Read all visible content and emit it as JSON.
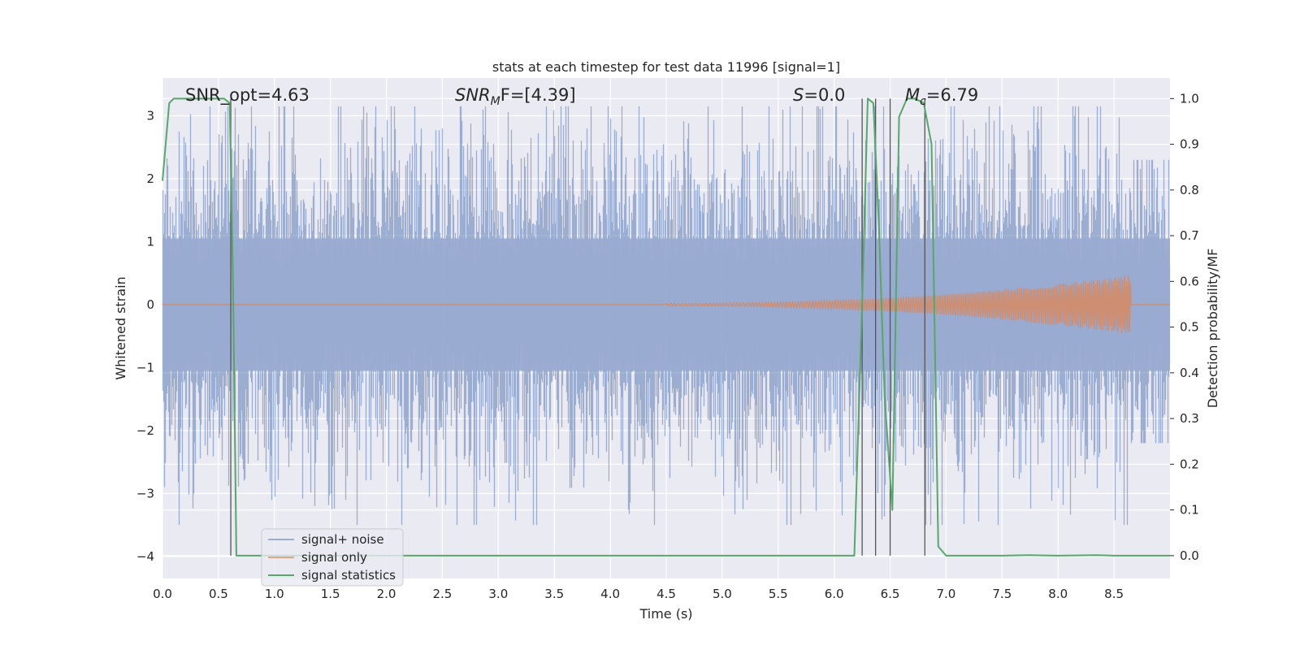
{
  "chart_data": {
    "type": "line",
    "title": "stats at each timestep for test data 11996 [signal=1]",
    "xlabel": "Time (s)",
    "ylabel": "Whitened strain",
    "y2label": "Detection probability/MF",
    "xlim": [
      0.0,
      9.0
    ],
    "ylim": [
      -4.35,
      3.6
    ],
    "y2lim": [
      -0.05,
      1.045
    ],
    "xticks": [
      "0.0",
      "0.5",
      "1.0",
      "1.5",
      "2.0",
      "2.5",
      "3.0",
      "3.5",
      "4.0",
      "4.5",
      "5.0",
      "5.5",
      "6.0",
      "6.5",
      "7.0",
      "7.5",
      "8.0",
      "8.5"
    ],
    "yticks": [
      "3",
      "2",
      "1",
      "0",
      "−1",
      "−2",
      "−3",
      "−4"
    ],
    "y2ticks": [
      "1.0",
      "0.9",
      "0.8",
      "0.7",
      "0.6",
      "0.5",
      "0.4",
      "0.3",
      "0.2",
      "0.1",
      "0.0"
    ],
    "grid": true,
    "legend_position": "lower-left",
    "annotations": [
      {
        "text": "SNR_opt=4.63",
        "x": 0.2
      },
      {
        "html_base": "SNR",
        "sub": "M",
        "rest": "F=[4.39]",
        "x": 2.6
      },
      {
        "html_base": "S",
        "rest": "=0.0",
        "x": 5.6
      },
      {
        "html_base": "M",
        "sub": "c",
        "rest": "=6.79",
        "x": 6.65
      }
    ],
    "noise": {
      "description_free": true,
      "amplitude_envelope": 1.1,
      "peak_extremes": {
        "max": 3.15,
        "min": -3.5
      }
    },
    "series": [
      {
        "name": "signal+ noise",
        "color": "#4c72b0",
        "style": "noise-band"
      },
      {
        "name": "signal only",
        "color": "#dd8452",
        "chirp_start": 4.5,
        "chirp_end": 8.65,
        "peak_amplitude": 0.45
      },
      {
        "name": "signal statistics",
        "color": "#55a868",
        "axis": "right",
        "x": [
          0.0,
          0.06,
          0.1,
          0.2,
          0.3,
          0.4,
          0.5,
          0.55,
          0.6,
          0.63,
          0.66,
          0.7,
          0.75,
          0.8,
          1.0,
          2.0,
          3.0,
          4.0,
          5.0,
          6.0,
          6.18,
          6.25,
          6.3,
          6.35,
          6.4,
          6.45,
          6.52,
          6.58,
          6.65,
          6.72,
          6.8,
          6.87,
          6.93,
          7.0,
          7.5,
          7.75,
          8.0,
          8.35,
          8.5,
          9.0
        ],
        "y": [
          0.82,
          0.99,
          1.0,
          1.0,
          1.0,
          1.0,
          1.0,
          1.0,
          0.99,
          0.6,
          0.0,
          0.0,
          0.0,
          0.0,
          0.0,
          0.0,
          0.0,
          0.0,
          0.0,
          0.0,
          0.0,
          0.55,
          1.0,
          0.99,
          0.72,
          0.35,
          0.1,
          0.96,
          1.0,
          1.0,
          0.99,
          0.9,
          0.02,
          0.0,
          0.0,
          0.001,
          0.0,
          0.001,
          0.0,
          0.0
        ]
      }
    ],
    "vertical_lines_x": [
      0.61,
      6.25,
      6.37,
      6.5,
      6.81
    ],
    "vertical_lines_color": "#555555"
  }
}
